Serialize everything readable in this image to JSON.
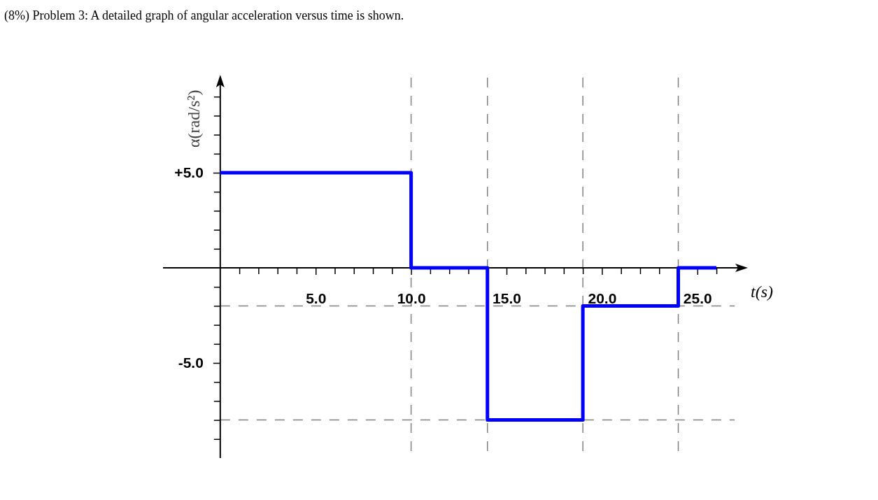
{
  "chart_data": {
    "type": "step",
    "title": "(8%) Problem 3: A detailed graph of angular acceleration versus time is shown.",
    "xlabel": "t(s)",
    "ylabel": "α(rad/s²)",
    "x": [
      0,
      10,
      14,
      19,
      24,
      26
    ],
    "series": [
      {
        "color": "#0000ff",
        "values": [
          5,
          0,
          -8,
          -2,
          0,
          0
        ]
      }
    ],
    "xlim": [
      -3,
      27.5
    ],
    "ylim": [
      -10,
      10
    ],
    "xticks": [
      {
        "value": 1,
        "label": null
      },
      {
        "value": 2,
        "label": null
      },
      {
        "value": 3,
        "label": null
      },
      {
        "value": 4,
        "label": null
      },
      {
        "value": 5,
        "label": "5.0"
      },
      {
        "value": 6,
        "label": null
      },
      {
        "value": 7,
        "label": null
      },
      {
        "value": 8,
        "label": null
      },
      {
        "value": 9,
        "label": null
      },
      {
        "value": 10,
        "label": "10.0"
      },
      {
        "value": 11,
        "label": null
      },
      {
        "value": 12,
        "label": null
      },
      {
        "value": 13,
        "label": null
      },
      {
        "value": 14,
        "label": null
      },
      {
        "value": 15,
        "label": "15.0"
      },
      {
        "value": 16,
        "label": null
      },
      {
        "value": 17,
        "label": null
      },
      {
        "value": 18,
        "label": null
      },
      {
        "value": 19,
        "label": null
      },
      {
        "value": 20,
        "label": "20.0"
      },
      {
        "value": 21,
        "label": null
      },
      {
        "value": 22,
        "label": null
      },
      {
        "value": 23,
        "label": null
      },
      {
        "value": 24,
        "label": null
      },
      {
        "value": 25,
        "label": "25.0"
      },
      {
        "value": 26,
        "label": null
      }
    ],
    "yticks": [
      {
        "value": -9,
        "label": null
      },
      {
        "value": -8,
        "label": null
      },
      {
        "value": -7,
        "label": null
      },
      {
        "value": -6,
        "label": null
      },
      {
        "value": -5,
        "label": "-5.0"
      },
      {
        "value": -4,
        "label": null
      },
      {
        "value": -3,
        "label": null
      },
      {
        "value": -2,
        "label": null
      },
      {
        "value": -1,
        "label": null
      },
      {
        "value": 1,
        "label": null
      },
      {
        "value": 2,
        "label": null
      },
      {
        "value": 3,
        "label": null
      },
      {
        "value": 4,
        "label": null
      },
      {
        "value": 5,
        "label": "+5.0"
      },
      {
        "value": 6,
        "label": null
      },
      {
        "value": 7,
        "label": null
      },
      {
        "value": 8,
        "label": null
      },
      {
        "value": 9,
        "label": null
      }
    ],
    "ref_lines": [
      {
        "axis": "x",
        "value": 10,
        "color": "#808080",
        "line_style": "dashed"
      },
      {
        "axis": "x",
        "value": 14,
        "color": "#808080",
        "line_style": "dashed"
      },
      {
        "axis": "x",
        "value": 19,
        "color": "#808080",
        "line_style": "dashed"
      },
      {
        "axis": "x",
        "value": 24,
        "color": "#808080",
        "line_style": "dashed"
      },
      {
        "axis": "y",
        "value": -2,
        "color": "#808080",
        "line_style": "dashed"
      },
      {
        "axis": "y",
        "value": -8,
        "color": "#808080",
        "line_style": "dashed"
      }
    ],
    "grid": false,
    "marker": "none",
    "line_style": "solid"
  }
}
